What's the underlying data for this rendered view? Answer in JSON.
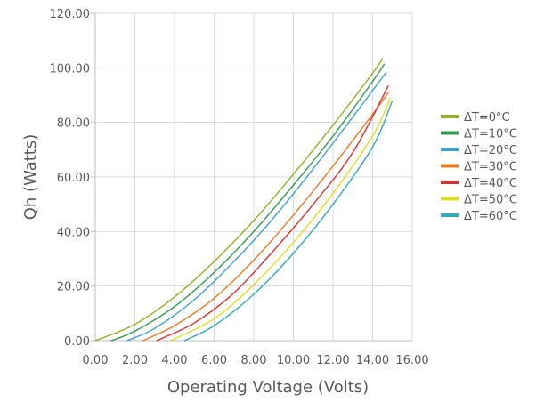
{
  "chart_data": {
    "type": "line",
    "title": "",
    "xlabel": "Operating Voltage (Volts)",
    "ylabel": "Qh (Watts)",
    "xlim": [
      0,
      16
    ],
    "ylim": [
      0,
      120
    ],
    "x_ticks": [
      "0.00",
      "2.00",
      "4.00",
      "6.00",
      "8.00",
      "10.00",
      "12.00",
      "14.00",
      "16.00"
    ],
    "y_ticks": [
      "0.00",
      "20.00",
      "40.00",
      "60.00",
      "80.00",
      "100.00",
      "120.00"
    ],
    "x_tick_values": [
      0,
      2,
      4,
      6,
      8,
      10,
      12,
      14,
      16
    ],
    "y_tick_values": [
      0,
      20,
      40,
      60,
      80,
      100,
      120
    ],
    "grid": true,
    "legend_position": "right",
    "series": [
      {
        "name": "ΔT=0°C",
        "color": "#8db51d",
        "x": [
          0,
          2,
          4,
          6,
          8,
          10,
          12,
          14,
          14.5
        ],
        "y": [
          0,
          6,
          16,
          29,
          44,
          61,
          79,
          98,
          103.5
        ]
      },
      {
        "name": "ΔT=10°C",
        "color": "#2e9a4e",
        "x": [
          0.8,
          2,
          4,
          6,
          8,
          10,
          12,
          14,
          14.6
        ],
        "y": [
          0,
          3.5,
          12.5,
          25,
          40,
          57,
          75,
          95,
          101.5
        ]
      },
      {
        "name": "ΔT=20°C",
        "color": "#3aa2d8",
        "x": [
          1.6,
          3,
          5,
          7,
          9,
          11,
          13,
          14.7
        ],
        "y": [
          0,
          4.5,
          15,
          29,
          45,
          63,
          82,
          98.5
        ]
      },
      {
        "name": "ΔT=30°C",
        "color": "#f07a20",
        "x": [
          2.4,
          4,
          6,
          8,
          10,
          12,
          14,
          14.8
        ],
        "y": [
          0,
          5.5,
          15.5,
          29.5,
          46,
          64,
          83,
          91
        ]
      },
      {
        "name": "ΔT=40°C",
        "color": "#dc2e2e",
        "x": [
          3.1,
          5,
          7,
          9,
          11,
          13,
          14.8
        ],
        "y": [
          0,
          6.5,
          17.5,
          33,
          50,
          69,
          93.5
        ]
      },
      {
        "name": "ΔT=50°C",
        "color": "#e0e01a",
        "x": [
          3.8,
          6,
          8,
          10,
          12,
          14,
          14.9
        ],
        "y": [
          0,
          8,
          20.5,
          36,
          54,
          75,
          89
        ]
      },
      {
        "name": "ΔT=60°C",
        "color": "#33aab8",
        "x": [
          4.5,
          6,
          8,
          10,
          12,
          14,
          15
        ],
        "y": [
          0,
          5.5,
          17,
          32,
          50,
          71,
          88
        ]
      }
    ]
  }
}
